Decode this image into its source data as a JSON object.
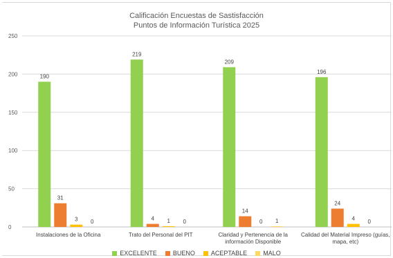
{
  "chart_data": {
    "type": "bar",
    "title": "Calificación Encuestas de Sastisfacción",
    "subtitle": "Puntos de Información Turística 2025",
    "categories": [
      [
        "Instalaciones de la Oficina"
      ],
      [
        "Trato del Personal del PIT"
      ],
      [
        "Claridad y Pertenencia de la",
        "información Disponible"
      ],
      [
        "Calidad del Material Impreso (guías,",
        "mapa, etc)"
      ]
    ],
    "series": [
      {
        "name": "EXCELENTE",
        "color": "#92d050",
        "values": [
          190,
          219,
          209,
          196
        ]
      },
      {
        "name": "BUENO",
        "color": "#ed7d31",
        "values": [
          31,
          4,
          14,
          24
        ]
      },
      {
        "name": "ACEPTABLE",
        "color": "#ffc000",
        "values": [
          3,
          1,
          0,
          4
        ]
      },
      {
        "name": "MALO",
        "color": "#ffd966",
        "values": [
          0,
          0,
          1,
          0
        ]
      }
    ],
    "ylim": [
      0,
      250
    ],
    "yticks": [
      0,
      50,
      100,
      150,
      200,
      250
    ],
    "grid": true,
    "legend": "bottom"
  }
}
